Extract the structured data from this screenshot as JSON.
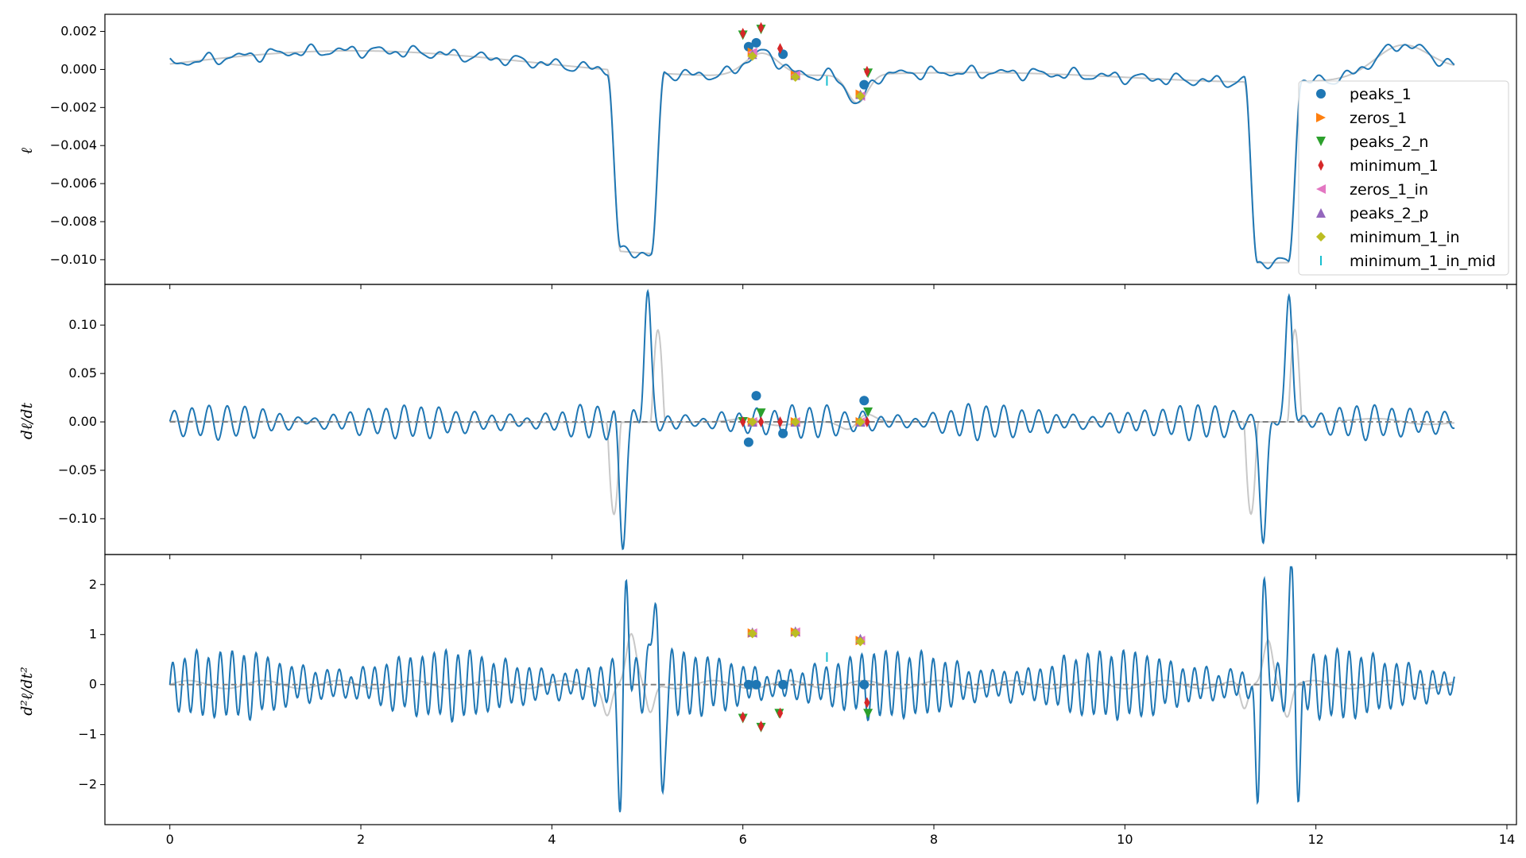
{
  "chart_data": [
    {
      "type": "line",
      "ylabel": "ℓ",
      "ylim": [
        -0.0113,
        0.0029
      ],
      "xlim": [
        -0.68,
        14.1
      ],
      "yticks": [
        0.002,
        0.0,
        -0.002,
        -0.004,
        -0.006,
        -0.008,
        -0.01
      ],
      "ytick_labels": [
        "0.002",
        "0.000",
        "−0.002",
        "−0.004",
        "−0.006",
        "−0.008",
        "−0.010"
      ],
      "transit_centers": [
        4.88,
        11.55
      ],
      "transit_depth": -0.0095,
      "series": [
        {
          "color": "#c8c8c8",
          "role": "model"
        },
        {
          "color": "#1f77b4",
          "role": "signal"
        }
      ],
      "markers": [
        {
          "series": "peaks_1",
          "points": [
            [
              6.06,
              0.0012
            ],
            [
              6.14,
              0.0014
            ],
            [
              6.42,
              0.0008
            ],
            [
              7.27,
              -0.0008
            ]
          ]
        },
        {
          "series": "zeros_1",
          "points": [
            [
              6.1,
              0.0009
            ],
            [
              6.55,
              -0.0003
            ],
            [
              7.23,
              -0.0013
            ]
          ]
        },
        {
          "series": "peaks_2_n",
          "points": [
            [
              6.0,
              0.0018
            ],
            [
              6.19,
              0.0021
            ],
            [
              7.31,
              -0.0002
            ]
          ]
        },
        {
          "series": "minimum_1",
          "points": [
            [
              6.0,
              0.0019
            ],
            [
              6.19,
              0.0022
            ],
            [
              6.39,
              0.0011
            ],
            [
              7.3,
              -0.0001
            ]
          ]
        },
        {
          "series": "zeros_1_in",
          "points": [
            [
              6.1,
              0.0009
            ],
            [
              6.55,
              -0.0003
            ],
            [
              7.23,
              -0.0014
            ]
          ]
        },
        {
          "series": "peaks_2_p",
          "points": [
            [
              6.1,
              0.0008
            ],
            [
              6.55,
              -0.0003
            ],
            [
              7.23,
              -0.0013
            ]
          ]
        },
        {
          "series": "minimum_1_in",
          "points": [
            [
              6.1,
              0.0007
            ],
            [
              6.55,
              -0.0004
            ],
            [
              7.23,
              -0.0014
            ]
          ]
        },
        {
          "series": "minimum_1_in_mid",
          "points": [
            [
              6.88,
              -0.0006
            ]
          ]
        }
      ]
    },
    {
      "type": "line",
      "ylabel": "dℓ/dt",
      "ylim": [
        -0.137,
        0.142
      ],
      "xlim": [
        -0.68,
        14.1
      ],
      "yticks": [
        0.1,
        0.05,
        0.0,
        -0.05,
        -0.1
      ],
      "ytick_labels": [
        "0.10",
        "0.05",
        "0.00",
        "−0.05",
        "−0.10"
      ],
      "peak_value": 0.13,
      "series": [
        {
          "color": "#c8c8c8",
          "role": "model"
        },
        {
          "color": "#1f77b4",
          "role": "signal"
        },
        {
          "color": "#808080",
          "role": "zero-line"
        }
      ],
      "markers": [
        {
          "series": "peaks_1",
          "points": [
            [
              6.06,
              -0.021
            ],
            [
              6.14,
              0.027
            ],
            [
              6.42,
              -0.012
            ],
            [
              7.27,
              0.022
            ]
          ]
        },
        {
          "series": "zeros_1",
          "points": [
            [
              6.1,
              0.0
            ],
            [
              6.55,
              0.0
            ],
            [
              7.23,
              0.0
            ]
          ]
        },
        {
          "series": "peaks_2_n",
          "points": [
            [
              6.0,
              0.0
            ],
            [
              6.19,
              0.009
            ],
            [
              7.31,
              0.01
            ]
          ]
        },
        {
          "series": "minimum_1",
          "points": [
            [
              6.0,
              0.0
            ],
            [
              6.19,
              0.0
            ],
            [
              6.39,
              0.0
            ],
            [
              7.3,
              0.0
            ]
          ]
        },
        {
          "series": "zeros_1_in",
          "points": [
            [
              6.1,
              0.0
            ],
            [
              6.55,
              0.0
            ],
            [
              7.23,
              0.0
            ]
          ]
        },
        {
          "series": "peaks_2_p",
          "points": [
            [
              6.1,
              0.0
            ],
            [
              6.55,
              0.0
            ],
            [
              7.23,
              0.0
            ]
          ]
        },
        {
          "series": "minimum_1_in",
          "points": [
            [
              6.1,
              0.0
            ],
            [
              6.55,
              0.0
            ],
            [
              7.23,
              0.0
            ]
          ]
        }
      ]
    },
    {
      "type": "line",
      "ylabel": "d²ℓ/dt²",
      "ylim": [
        -2.8,
        2.6
      ],
      "xlim": [
        -0.68,
        14.1
      ],
      "xticks": [
        0,
        2,
        4,
        6,
        8,
        10,
        12,
        14
      ],
      "xtick_labels": [
        "0",
        "2",
        "4",
        "6",
        "8",
        "10",
        "12",
        "14"
      ],
      "yticks": [
        2,
        1,
        0,
        -1,
        -2
      ],
      "ytick_labels": [
        "2",
        "1",
        "0",
        "−1",
        "−2"
      ],
      "peak_value": 2.35,
      "series": [
        {
          "color": "#c8c8c8",
          "role": "model"
        },
        {
          "color": "#1f77b4",
          "role": "signal"
        },
        {
          "color": "#808080",
          "role": "zero-line"
        }
      ],
      "markers": [
        {
          "series": "peaks_1",
          "points": [
            [
              6.06,
              0.0
            ],
            [
              6.14,
              0.0
            ],
            [
              6.42,
              0.0
            ],
            [
              7.27,
              0.0
            ]
          ]
        },
        {
          "series": "zeros_1",
          "points": [
            [
              6.1,
              1.03
            ],
            [
              6.55,
              1.05
            ],
            [
              7.23,
              0.88
            ]
          ]
        },
        {
          "series": "peaks_2_n",
          "points": [
            [
              6.0,
              -0.68
            ],
            [
              6.19,
              -0.86
            ],
            [
              6.38,
              -0.58
            ],
            [
              7.31,
              -0.58
            ]
          ]
        },
        {
          "series": "minimum_1",
          "points": [
            [
              6.0,
              -0.65
            ],
            [
              6.19,
              -0.83
            ],
            [
              6.39,
              -0.57
            ],
            [
              7.3,
              -0.36
            ]
          ]
        },
        {
          "series": "zeros_1_in",
          "points": [
            [
              6.1,
              1.03
            ],
            [
              6.55,
              1.05
            ],
            [
              7.23,
              0.88
            ]
          ]
        },
        {
          "series": "peaks_2_p",
          "points": [
            [
              6.1,
              1.05
            ],
            [
              6.55,
              1.07
            ],
            [
              7.23,
              0.92
            ]
          ]
        },
        {
          "series": "minimum_1_in",
          "points": [
            [
              6.1,
              1.02
            ],
            [
              6.55,
              1.03
            ],
            [
              7.23,
              0.86
            ]
          ]
        },
        {
          "series": "minimum_1_in_mid",
          "points": [
            [
              6.88,
              0.55
            ]
          ]
        }
      ]
    }
  ],
  "legend": {
    "location": "right",
    "entries": [
      {
        "label": "peaks_1",
        "color": "#1f77b4",
        "marker": "circle"
      },
      {
        "label": "zeros_1",
        "color": "#ff7f0e",
        "marker": "triangle-right"
      },
      {
        "label": "peaks_2_n",
        "color": "#2ca02c",
        "marker": "triangle-down"
      },
      {
        "label": "minimum_1",
        "color": "#d62728",
        "marker": "thin-diamond"
      },
      {
        "label": "zeros_1_in",
        "color": "#e377c2",
        "marker": "triangle-left"
      },
      {
        "label": "peaks_2_p",
        "color": "#9467bd",
        "marker": "triangle-up"
      },
      {
        "label": "minimum_1_in",
        "color": "#bcbd22",
        "marker": "diamond"
      },
      {
        "label": "minimum_1_in_mid",
        "color": "#17becf",
        "marker": "vline"
      }
    ]
  }
}
